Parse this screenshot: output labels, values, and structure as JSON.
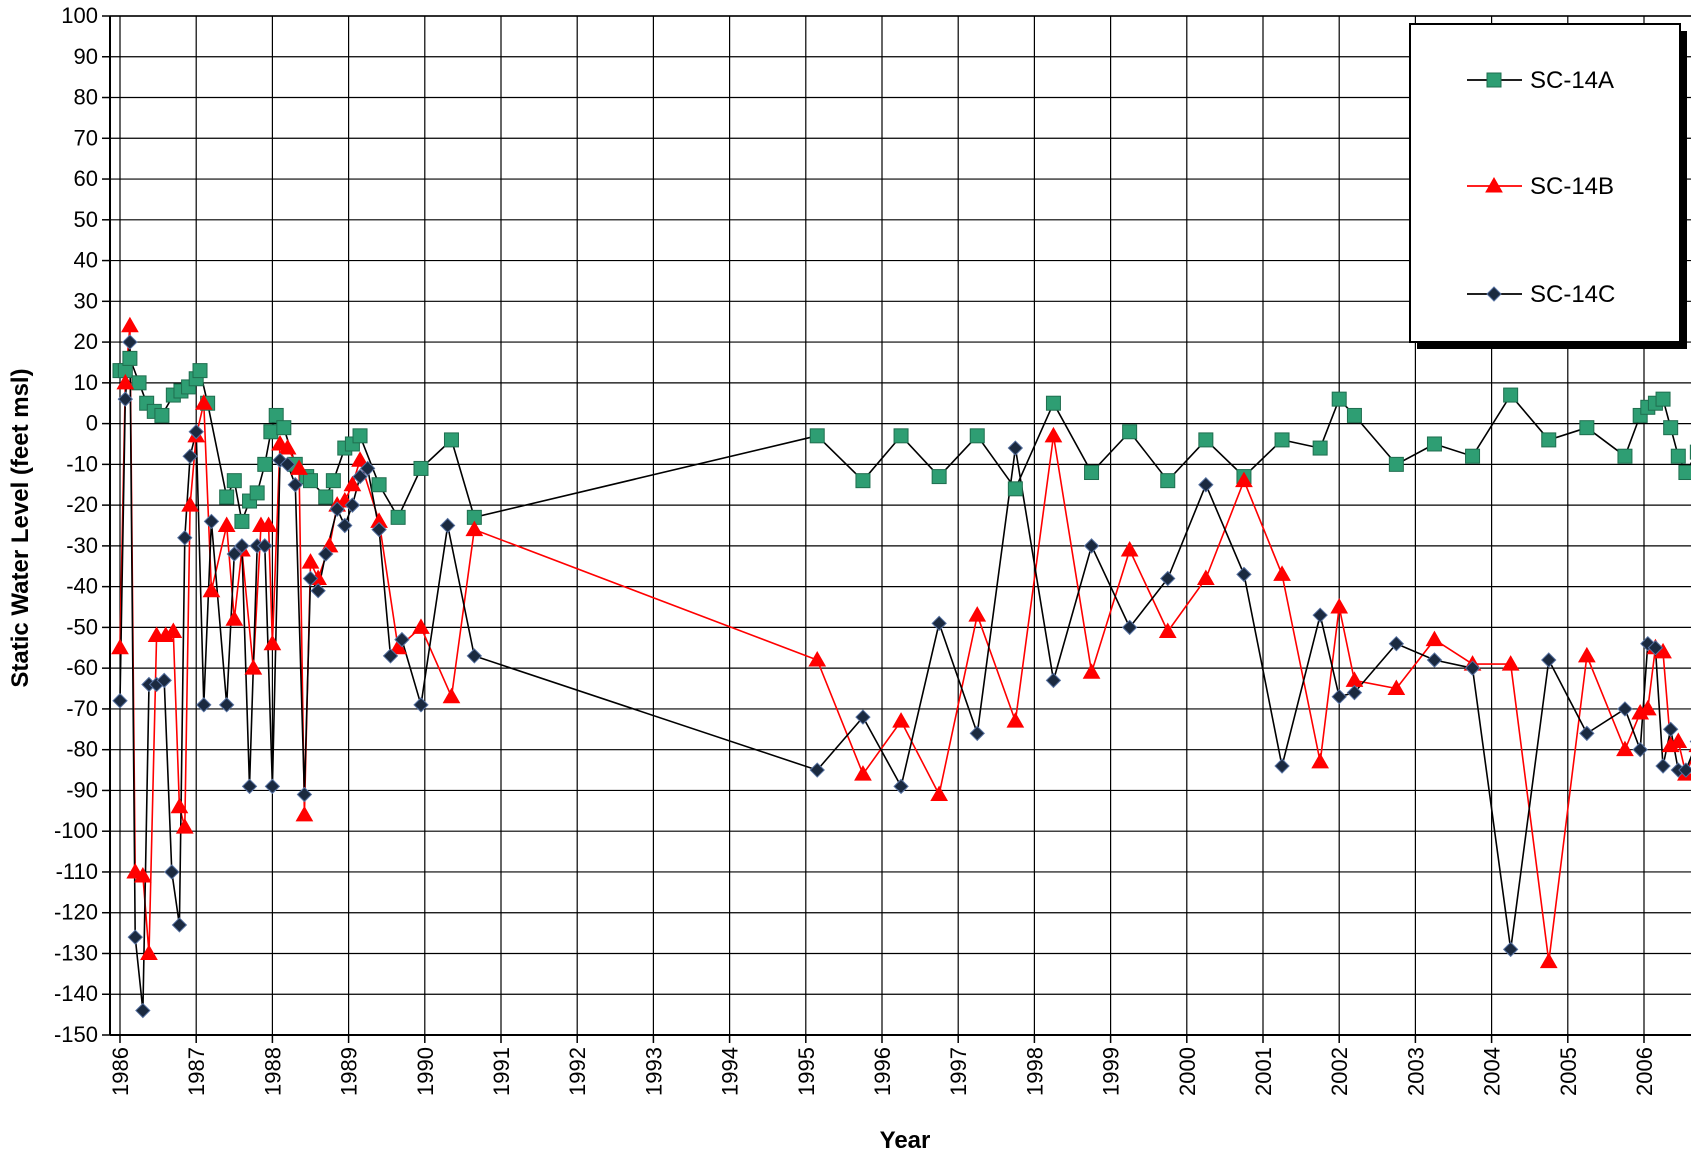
{
  "chart_data": {
    "type": "line",
    "title": "",
    "xlabel": "Year",
    "ylabel": "Static Water Level (feet msl)",
    "ylim": [
      -150,
      100
    ],
    "y_tick_step": 10,
    "x_categories": [
      "1986",
      "1987",
      "1988",
      "1989",
      "1990",
      "1991",
      "1992",
      "1993",
      "1994",
      "1995",
      "1996",
      "1997",
      "1998",
      "1999",
      "2000",
      "2001",
      "2002",
      "2003",
      "2004",
      "2005",
      "2006"
    ],
    "x_note_years": "x values are year positions on the category axis",
    "grid": true,
    "legend_position": "top-right",
    "series": [
      {
        "name": "SC-14A",
        "color": "#2e9e73",
        "marker": "square",
        "points": [
          [
            1986.0,
            13
          ],
          [
            1986.07,
            13
          ],
          [
            1986.13,
            16
          ],
          [
            1986.25,
            10
          ],
          [
            1986.35,
            5
          ],
          [
            1986.45,
            3
          ],
          [
            1986.55,
            2
          ],
          [
            1986.7,
            7
          ],
          [
            1986.8,
            8
          ],
          [
            1986.9,
            9
          ],
          [
            1987.0,
            11
          ],
          [
            1987.05,
            13
          ],
          [
            1987.15,
            5
          ],
          [
            1987.4,
            -18
          ],
          [
            1987.5,
            -14
          ],
          [
            1987.6,
            -24
          ],
          [
            1987.7,
            -19
          ],
          [
            1987.8,
            -17
          ],
          [
            1987.9,
            -10
          ],
          [
            1987.98,
            -2
          ],
          [
            1988.05,
            2
          ],
          [
            1988.15,
            -1
          ],
          [
            1988.3,
            -10
          ],
          [
            1988.45,
            -13
          ],
          [
            1988.5,
            -14
          ],
          [
            1988.7,
            -18
          ],
          [
            1988.8,
            -14
          ],
          [
            1988.95,
            -6
          ],
          [
            1989.05,
            -5
          ],
          [
            1989.15,
            -3
          ],
          [
            1989.4,
            -15
          ],
          [
            1989.65,
            -23
          ],
          [
            1989.95,
            -11
          ],
          [
            1990.35,
            -4
          ],
          [
            1990.65,
            -23
          ],
          [
            1995.15,
            -3
          ],
          [
            1995.75,
            -14
          ],
          [
            1996.25,
            -3
          ],
          [
            1996.75,
            -13
          ],
          [
            1997.25,
            -3
          ],
          [
            1997.75,
            -16
          ],
          [
            1998.25,
            5
          ],
          [
            1998.75,
            -12
          ],
          [
            1999.25,
            -2
          ],
          [
            1999.75,
            -14
          ],
          [
            2000.25,
            -4
          ],
          [
            2000.75,
            -13
          ],
          [
            2001.25,
            -4
          ],
          [
            2001.75,
            -6
          ],
          [
            2002.0,
            6
          ],
          [
            2002.2,
            2
          ],
          [
            2002.75,
            -10
          ],
          [
            2003.25,
            -5
          ],
          [
            2003.75,
            -8
          ],
          [
            2004.25,
            7
          ],
          [
            2004.75,
            -4
          ],
          [
            2005.25,
            -1
          ],
          [
            2005.75,
            -8
          ],
          [
            2005.95,
            2
          ],
          [
            2006.05,
            4
          ],
          [
            2006.15,
            5
          ],
          [
            2006.25,
            6
          ],
          [
            2006.35,
            -1
          ],
          [
            2006.45,
            -8
          ],
          [
            2006.55,
            -12
          ],
          [
            2006.7,
            -7
          ]
        ]
      },
      {
        "name": "SC-14B",
        "color": "#ff0000",
        "marker": "triangle",
        "points": [
          [
            1986.0,
            -55
          ],
          [
            1986.07,
            10
          ],
          [
            1986.13,
            24
          ],
          [
            1986.2,
            -110
          ],
          [
            1986.3,
            -111
          ],
          [
            1986.38,
            -130
          ],
          [
            1986.48,
            -52
          ],
          [
            1986.6,
            -52
          ],
          [
            1986.7,
            -51
          ],
          [
            1986.78,
            -94
          ],
          [
            1986.85,
            -99
          ],
          [
            1986.92,
            -20
          ],
          [
            1987.0,
            -3
          ],
          [
            1987.1,
            5
          ],
          [
            1987.2,
            -41
          ],
          [
            1987.4,
            -25
          ],
          [
            1987.5,
            -48
          ],
          [
            1987.6,
            -31
          ],
          [
            1987.75,
            -60
          ],
          [
            1987.85,
            -25
          ],
          [
            1987.95,
            -25
          ],
          [
            1988.0,
            -54
          ],
          [
            1988.1,
            -5
          ],
          [
            1988.2,
            -6
          ],
          [
            1988.35,
            -11
          ],
          [
            1988.42,
            -96
          ],
          [
            1988.5,
            -34
          ],
          [
            1988.6,
            -38
          ],
          [
            1988.75,
            -30
          ],
          [
            1988.85,
            -20
          ],
          [
            1988.95,
            -19
          ],
          [
            1989.05,
            -15
          ],
          [
            1989.15,
            -9
          ],
          [
            1989.4,
            -24
          ],
          [
            1989.65,
            -55
          ],
          [
            1989.95,
            -50
          ],
          [
            1990.35,
            -67
          ],
          [
            1990.65,
            -26
          ],
          [
            1995.15,
            -58
          ],
          [
            1995.75,
            -86
          ],
          [
            1996.25,
            -73
          ],
          [
            1996.75,
            -91
          ],
          [
            1997.25,
            -47
          ],
          [
            1997.75,
            -73
          ],
          [
            1998.25,
            -3
          ],
          [
            1998.75,
            -61
          ],
          [
            1999.25,
            -31
          ],
          [
            1999.75,
            -51
          ],
          [
            2000.25,
            -38
          ],
          [
            2000.75,
            -14
          ],
          [
            2001.25,
            -37
          ],
          [
            2001.75,
            -83
          ],
          [
            2002.0,
            -45
          ],
          [
            2002.2,
            -63
          ],
          [
            2002.75,
            -65
          ],
          [
            2003.25,
            -53
          ],
          [
            2003.75,
            -59
          ],
          [
            2004.25,
            -59
          ],
          [
            2004.75,
            -132
          ],
          [
            2005.25,
            -57
          ],
          [
            2005.75,
            -80
          ],
          [
            2005.95,
            -71
          ],
          [
            2006.05,
            -70
          ],
          [
            2006.15,
            -55
          ],
          [
            2006.25,
            -56
          ],
          [
            2006.35,
            -79
          ],
          [
            2006.45,
            -78
          ],
          [
            2006.55,
            -86
          ],
          [
            2006.7,
            -79
          ]
        ]
      },
      {
        "name": "SC-14C",
        "color": "#1b2a40",
        "marker": "diamond",
        "points": [
          [
            1986.0,
            -68
          ],
          [
            1986.07,
            6
          ],
          [
            1986.13,
            20
          ],
          [
            1986.2,
            -126
          ],
          [
            1986.3,
            -144
          ],
          [
            1986.38,
            -64
          ],
          [
            1986.48,
            -64
          ],
          [
            1986.58,
            -63
          ],
          [
            1986.68,
            -110
          ],
          [
            1986.78,
            -123
          ],
          [
            1986.85,
            -28
          ],
          [
            1986.92,
            -8
          ],
          [
            1987.0,
            -2
          ],
          [
            1987.1,
            -69
          ],
          [
            1987.2,
            -24
          ],
          [
            1987.4,
            -69
          ],
          [
            1987.5,
            -32
          ],
          [
            1987.6,
            -30
          ],
          [
            1987.7,
            -89
          ],
          [
            1987.8,
            -30
          ],
          [
            1987.9,
            -30
          ],
          [
            1988.0,
            -89
          ],
          [
            1988.1,
            -9
          ],
          [
            1988.2,
            -10
          ],
          [
            1988.3,
            -15
          ],
          [
            1988.42,
            -91
          ],
          [
            1988.5,
            -38
          ],
          [
            1988.6,
            -41
          ],
          [
            1988.7,
            -32
          ],
          [
            1988.85,
            -21
          ],
          [
            1988.95,
            -25
          ],
          [
            1989.05,
            -20
          ],
          [
            1989.15,
            -13
          ],
          [
            1989.25,
            -11
          ],
          [
            1989.4,
            -26
          ],
          [
            1989.55,
            -57
          ],
          [
            1989.7,
            -53
          ],
          [
            1989.95,
            -69
          ],
          [
            1990.3,
            -25
          ],
          [
            1990.65,
            -57
          ],
          [
            1995.15,
            -85
          ],
          [
            1995.75,
            -72
          ],
          [
            1996.25,
            -89
          ],
          [
            1996.75,
            -49
          ],
          [
            1997.25,
            -76
          ],
          [
            1997.75,
            -6
          ],
          [
            1998.25,
            -63
          ],
          [
            1998.75,
            -30
          ],
          [
            1999.25,
            -50
          ],
          [
            1999.75,
            -38
          ],
          [
            2000.25,
            -15
          ],
          [
            2000.75,
            -37
          ],
          [
            2001.25,
            -84
          ],
          [
            2001.75,
            -47
          ],
          [
            2002.0,
            -67
          ],
          [
            2002.2,
            -66
          ],
          [
            2002.75,
            -54
          ],
          [
            2003.25,
            -58
          ],
          [
            2003.75,
            -60
          ],
          [
            2004.25,
            -129
          ],
          [
            2004.75,
            -58
          ],
          [
            2005.25,
            -76
          ],
          [
            2005.75,
            -70
          ],
          [
            2005.95,
            -80
          ],
          [
            2006.05,
            -54
          ],
          [
            2006.15,
            -55
          ],
          [
            2006.25,
            -84
          ],
          [
            2006.35,
            -75
          ],
          [
            2006.45,
            -85
          ],
          [
            2006.55,
            -85
          ],
          [
            2006.7,
            -78
          ]
        ]
      }
    ]
  }
}
